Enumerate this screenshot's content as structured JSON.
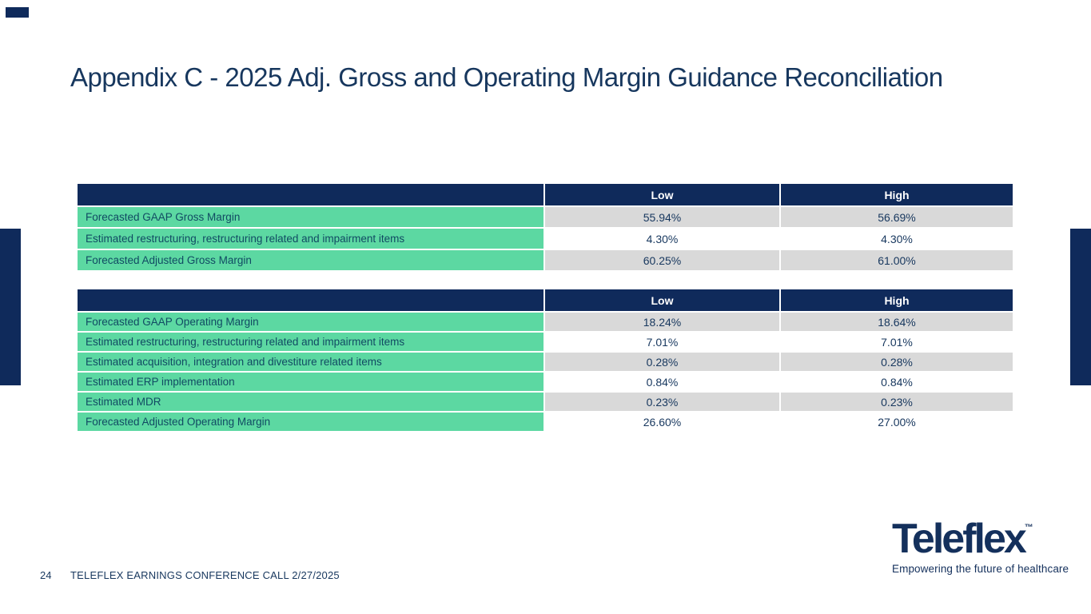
{
  "slide": {
    "title": "Appendix C - 2025 Adj. Gross and Operating Margin Guidance Reconciliation",
    "footer": {
      "page_number": "24",
      "text": "TELEFLEX EARNINGS CONFERENCE CALL 2/27/2025"
    },
    "logo": {
      "wordmark": "Teleflex",
      "trademark": "™",
      "tagline": "Empowering the future of healthcare"
    }
  },
  "colors": {
    "navy": "#0f2a5b",
    "title_text": "#17375e",
    "green_label": "#5cd8a2",
    "green_label_text": "#114a63",
    "row_gray": "#d9d9d9",
    "header_text": "#ffffff"
  },
  "tables": [
    {
      "name": "gross-margin-reconciliation",
      "columns": [
        "",
        "Low",
        "High"
      ],
      "rows": [
        {
          "label": "Forecasted GAAP Gross Margin",
          "low": "55.94%",
          "high": "56.69%",
          "shade": "gray"
        },
        {
          "label": "Estimated restructuring, restructuring related and impairment items",
          "low": "4.30%",
          "high": "4.30%",
          "shade": "white"
        },
        {
          "label": "Forecasted Adjusted Gross Margin",
          "low": "60.25%",
          "high": "61.00%",
          "shade": "gray"
        }
      ]
    },
    {
      "name": "operating-margin-reconciliation",
      "columns": [
        "",
        "Low",
        "High"
      ],
      "rows": [
        {
          "label": "Forecasted GAAP Operating Margin",
          "low": "18.24%",
          "high": "18.64%",
          "shade": "gray"
        },
        {
          "label": "Estimated restructuring, restructuring related and impairment items",
          "low": "7.01%",
          "high": "7.01%",
          "shade": "white"
        },
        {
          "label": "Estimated acquisition, integration and divestiture related items",
          "low": "0.28%",
          "high": "0.28%",
          "shade": "gray"
        },
        {
          "label": "Estimated ERP implementation",
          "low": "0.84%",
          "high": "0.84%",
          "shade": "white"
        },
        {
          "label": "Estimated MDR",
          "low": "0.23%",
          "high": "0.23%",
          "shade": "gray"
        },
        {
          "label": "Forecasted Adjusted Operating Margin",
          "low": "26.60%",
          "high": "27.00%",
          "shade": "white"
        }
      ]
    }
  ]
}
